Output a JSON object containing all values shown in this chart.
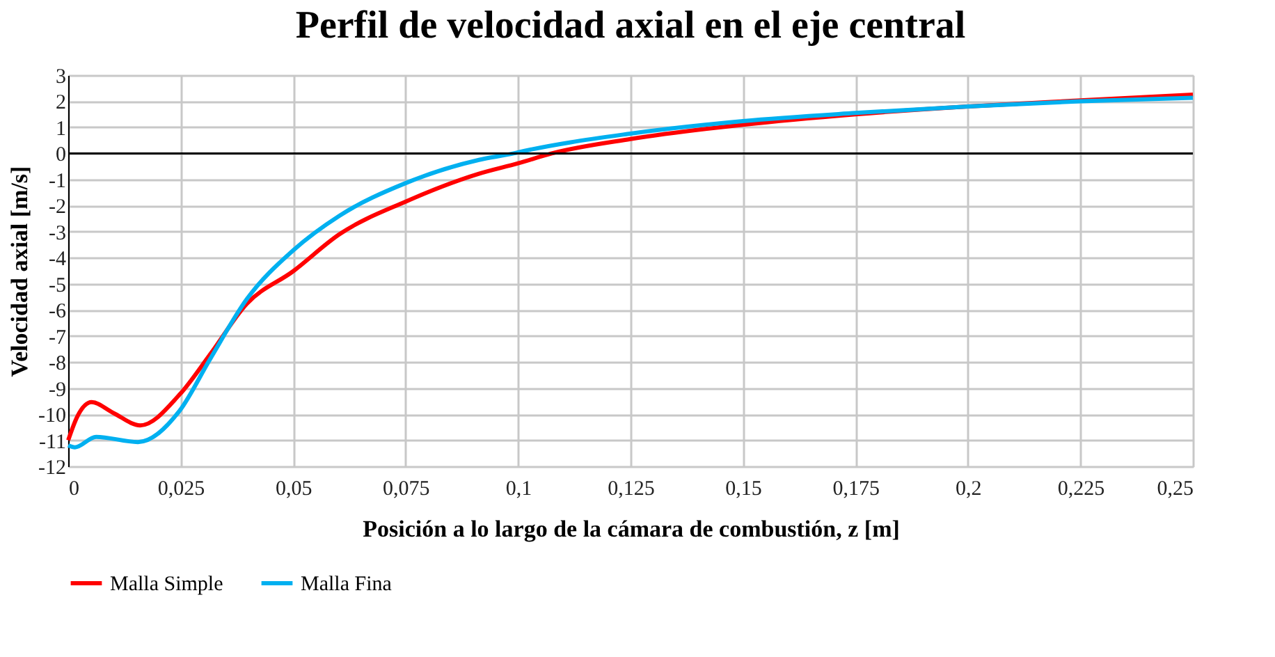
{
  "chart_data": {
    "type": "line",
    "title": "Perfil de velocidad axial en el eje central",
    "xlabel": "Posición a lo largo de la cámara de combustión, z [m]",
    "ylabel": "Velocidad axial [m/s]",
    "xlim": [
      0,
      0.25
    ],
    "ylim": [
      -12,
      3
    ],
    "xticks": [
      0,
      {
        "value": 0.025,
        "label": "0,025"
      },
      {
        "value": 0.05,
        "label": "0,05"
      },
      {
        "value": 0.075,
        "label": "0,075"
      },
      {
        "value": 0.1,
        "label": "0,1"
      },
      {
        "value": 0.125,
        "label": "0,125"
      },
      {
        "value": 0.15,
        "label": "0,15"
      },
      {
        "value": 0.175,
        "label": "0,175"
      },
      {
        "value": 0.2,
        "label": "0,2"
      },
      {
        "value": 0.225,
        "label": "0,225"
      },
      {
        "value": 0.25,
        "label": "0,25"
      }
    ],
    "yticks": [
      -12,
      -11,
      -10,
      -9,
      -8,
      -7,
      -6,
      -5,
      -4,
      -3,
      -2,
      -1,
      0,
      1,
      2,
      3
    ],
    "grid": true,
    "legend": "bottom",
    "marker": "none",
    "line_style": "solid",
    "ref_lines": [
      {
        "axis": "y",
        "value": 0,
        "color": "#000000"
      }
    ],
    "series": [
      {
        "name": "Malla Simple",
        "color": "#ff0000",
        "x": [
          0,
          0.002,
          0.0052,
          0.01,
          0.016,
          0.0248,
          0.0315,
          0.0397,
          0.05,
          0.0603,
          0.075,
          0.0913,
          0.1,
          0.1075,
          0.125,
          0.15,
          0.175,
          0.2,
          0.225,
          0.25
        ],
        "values": [
          -11.0,
          -10.1,
          -9.54,
          -9.95,
          -10.43,
          -9.24,
          -7.72,
          -5.77,
          -4.52,
          -3.1,
          -1.85,
          -0.78,
          -0.38,
          0,
          0.55,
          1.1,
          1.5,
          1.8,
          2.03,
          2.25
        ]
      },
      {
        "name": "Malla Fina",
        "color": "#00b0f0",
        "x": [
          0,
          0.0015,
          0.0062,
          0.0155,
          0.0248,
          0.0315,
          0.0397,
          0.05,
          0.0603,
          0.075,
          0.0913,
          0.099,
          0.1,
          0.125,
          0.15,
          0.175,
          0.2,
          0.225,
          0.25
        ],
        "values": [
          -11.2,
          -11.27,
          -10.87,
          -11.07,
          -9.86,
          -7.9,
          -5.59,
          -3.72,
          -2.39,
          -1.14,
          -0.25,
          0,
          0.04,
          0.76,
          1.24,
          1.55,
          1.8,
          2.0,
          2.13
        ]
      }
    ]
  }
}
